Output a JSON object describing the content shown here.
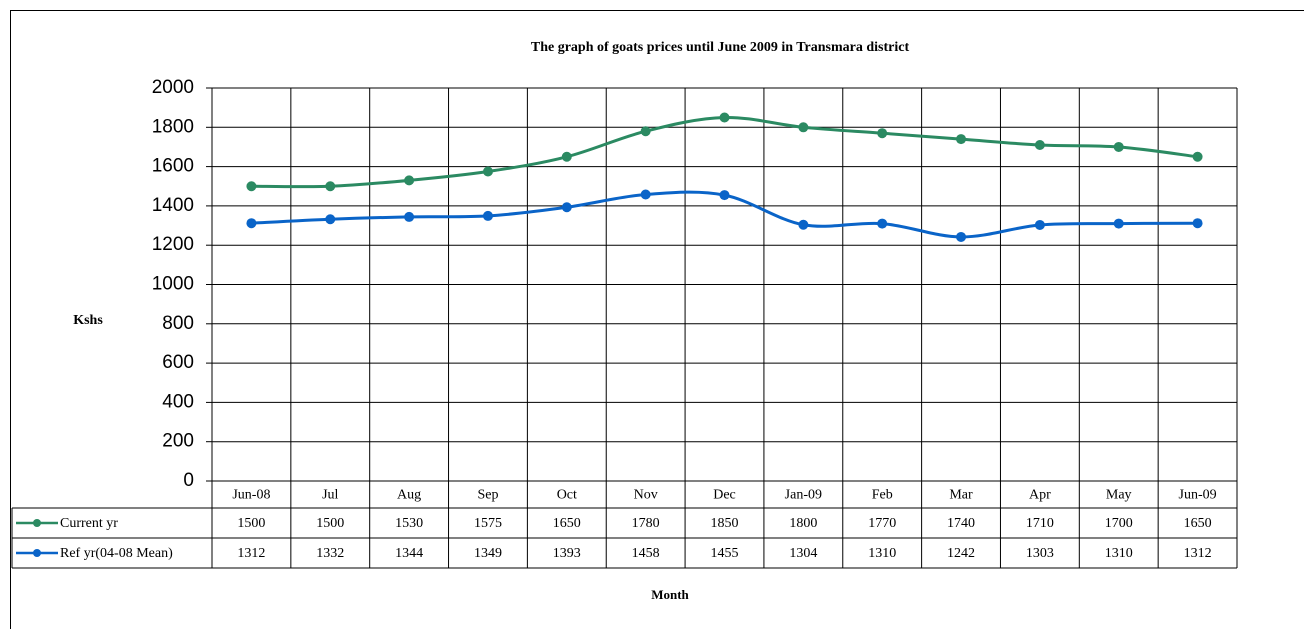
{
  "chart_data": {
    "type": "line",
    "title": "The graph of  goats prices  until June 2009 in Transmara district",
    "y_label": "Kshs",
    "x_label": "Month",
    "categories": [
      "Jun-08",
      "Jul",
      "Aug",
      "Sep",
      "Oct",
      "Nov",
      "Dec",
      "Jan-09",
      "Feb",
      "Mar",
      "Apr",
      "May",
      "Jun-09"
    ],
    "series": [
      {
        "name": "Current yr",
        "color": "#2b8a62",
        "values": [
          1500,
          1500,
          1530,
          1575,
          1650,
          1780,
          1850,
          1800,
          1770,
          1740,
          1710,
          1700,
          1650
        ]
      },
      {
        "name": "Ref yr(04-08 Mean)",
        "color": "#0a64c8",
        "values": [
          1312,
          1332,
          1344,
          1349,
          1393,
          1458,
          1455,
          1304,
          1310,
          1242,
          1303,
          1310,
          1312
        ]
      }
    ],
    "ylim": [
      0,
      2000
    ],
    "yticks": [
      0,
      200,
      400,
      600,
      800,
      1000,
      1200,
      1400,
      1600,
      1800,
      2000
    ],
    "grid": true,
    "data_table": true
  }
}
